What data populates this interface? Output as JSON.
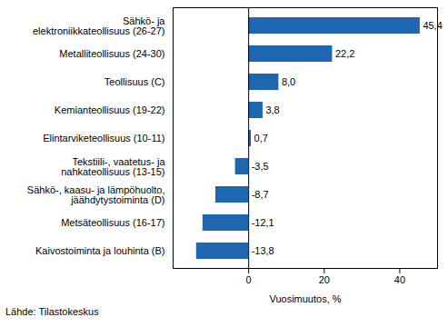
{
  "chart_data": {
    "type": "bar",
    "orientation": "horizontal",
    "categories": [
      "Sähkö- ja\nelektroniikkateollisuus (26-27)",
      "Metalliteollisuus (24-30)",
      "Teollisuus (C)",
      "Kemianteollisuus (19-22)",
      "Elintarviketeollisuus (10-11)",
      "Tekstiili-, vaatetus- ja\nnahkateollisuus (13-15)",
      "Sähkö-, kaasu- ja lämpöhuolto,\njäähdytystoiminta (D)",
      "Metsäteollisuus (16-17)",
      "Kaivostoiminta ja louhinta (B)"
    ],
    "values": [
      45.4,
      22.2,
      8.0,
      3.8,
      0.7,
      -3.5,
      -8.7,
      -12.1,
      -13.8
    ],
    "value_labels": [
      "45,4",
      "22,2",
      "8,0",
      "3,8",
      "0,7",
      "-3,5",
      "-8,7",
      "-12,1",
      "-13,8"
    ],
    "data_labels": true,
    "color": "#1f66b0",
    "x_label": "Vuosimuutos, %",
    "xlim": [
      -20,
      50
    ],
    "xticks": [
      0,
      20,
      40
    ],
    "grid": false,
    "caption": "Lähde: Tilastokeskus"
  }
}
